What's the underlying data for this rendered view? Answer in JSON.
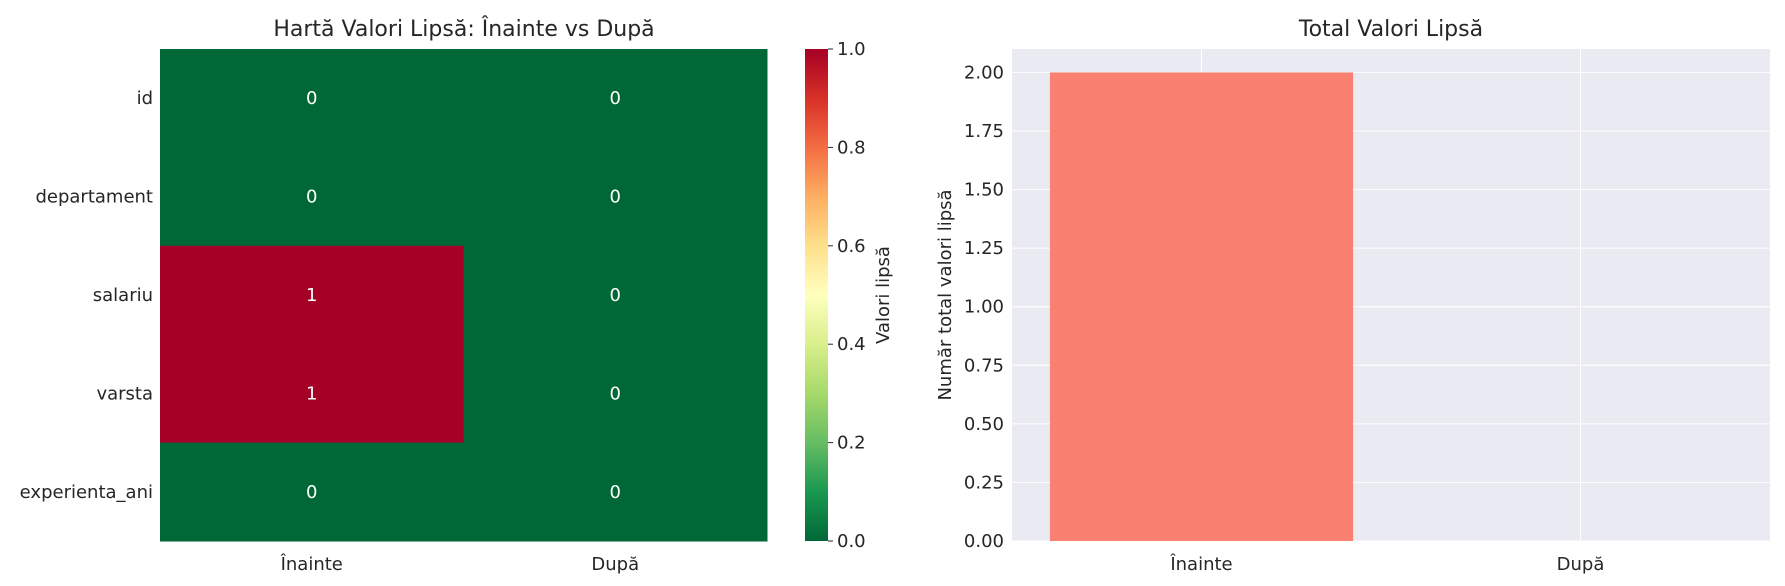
{
  "chart_data": [
    {
      "type": "heatmap",
      "title": "Hartă Valori Lipsă: Înainte vs După",
      "rows": [
        "id",
        "departament",
        "salariu",
        "varsta",
        "experienta_ani"
      ],
      "columns": [
        "Înainte",
        "După"
      ],
      "values": [
        [
          0,
          0
        ],
        [
          0,
          0
        ],
        [
          1,
          0
        ],
        [
          1,
          0
        ],
        [
          0,
          0
        ]
      ],
      "colormap": "RdYlGn_r",
      "colorbar": {
        "label": "Valori lipsă",
        "range": [
          0,
          1
        ],
        "ticks": [
          "0.0",
          "0.2",
          "0.4",
          "0.6",
          "0.8",
          "1.0"
        ]
      }
    },
    {
      "type": "bar",
      "title": "Total Valori Lipsă",
      "categories": [
        "Înainte",
        "După"
      ],
      "values": [
        2,
        0
      ],
      "ylabel": "Număr total valori lipsă",
      "ylim": [
        0,
        2.1
      ],
      "yticks": [
        "0.00",
        "0.25",
        "0.50",
        "0.75",
        "1.00",
        "1.25",
        "1.50",
        "1.75",
        "2.00"
      ],
      "bar_colors": [
        "#fa8072",
        "#fa8072"
      ],
      "grid": true
    }
  ]
}
